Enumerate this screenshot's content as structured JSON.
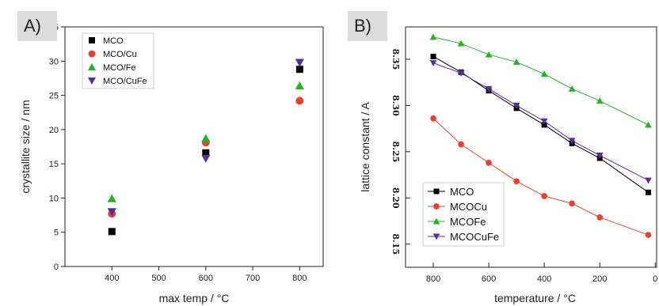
{
  "chart_data": [
    {
      "panel": "A)",
      "type": "scatter",
      "xlabel": "max temp / °C",
      "ylabel": "crystallite size / nm",
      "xlim": [
        300,
        850
      ],
      "ylim": [
        0,
        35
      ],
      "x_ticks": [
        400,
        500,
        600,
        700,
        800
      ],
      "y_ticks": [
        0,
        5,
        10,
        15,
        20,
        25,
        30,
        35
      ],
      "legend": "top-left",
      "grid": false,
      "series": [
        {
          "name": "MCO",
          "marker": "square",
          "color": "#000000",
          "x": [
            400,
            600,
            800
          ],
          "y": [
            5.1,
            16.6,
            28.8
          ]
        },
        {
          "name": "MCO/Cu",
          "marker": "circle",
          "color": "#e8402a",
          "x": [
            400,
            600,
            800
          ],
          "y": [
            7.7,
            18.1,
            24.2
          ]
        },
        {
          "name": "MCO/Fe",
          "marker": "triangle-up",
          "color": "#22b522",
          "x": [
            400,
            600,
            800
          ],
          "y": [
            9.9,
            18.7,
            26.4
          ]
        },
        {
          "name": "MCO/CuFe",
          "marker": "triangle-down",
          "color": "#5a2ca0",
          "x": [
            400,
            600,
            800
          ],
          "y": [
            8.0,
            15.8,
            29.8
          ]
        }
      ]
    },
    {
      "panel": "B)",
      "type": "line",
      "xlabel": "temperature / °C",
      "ylabel": "lattice constant / A",
      "xlim": [
        900,
        -5
      ],
      "ylim": [
        8.125,
        8.385
      ],
      "x_ticks": [
        800,
        600,
        400,
        200,
        0
      ],
      "y_ticks": [
        8.15,
        8.2,
        8.25,
        8.3,
        8.35
      ],
      "y_tick_labels": [
        "8.15",
        "8.20",
        "8.25",
        "8.30",
        "8.35"
      ],
      "legend": "bottom-left",
      "grid": false,
      "series": [
        {
          "name": "MCO",
          "marker": "square",
          "color": "#000000",
          "x": [
            800,
            700,
            600,
            500,
            400,
            300,
            200,
            25
          ],
          "y": [
            8.353,
            8.336,
            8.316,
            8.297,
            8.279,
            8.259,
            8.243,
            8.206
          ]
        },
        {
          "name": "MCOCu",
          "marker": "circle",
          "color": "#e8402a",
          "x": [
            800,
            700,
            600,
            500,
            400,
            300,
            200,
            25
          ],
          "y": [
            8.286,
            8.258,
            8.238,
            8.218,
            8.202,
            8.194,
            8.179,
            8.16
          ]
        },
        {
          "name": "MCOFe",
          "marker": "triangle-up",
          "color": "#22b522",
          "x": [
            800,
            700,
            600,
            500,
            400,
            300,
            200,
            25
          ],
          "y": [
            8.374,
            8.367,
            8.355,
            8.347,
            8.334,
            8.318,
            8.305,
            8.279
          ]
        },
        {
          "name": "MCOCuFe",
          "marker": "triangle-down",
          "color": "#5a2ca0",
          "x": [
            800,
            700,
            600,
            500,
            400,
            300,
            200,
            25
          ],
          "y": [
            8.346,
            8.335,
            8.318,
            8.3,
            8.283,
            8.262,
            8.246,
            8.219
          ]
        }
      ]
    }
  ]
}
